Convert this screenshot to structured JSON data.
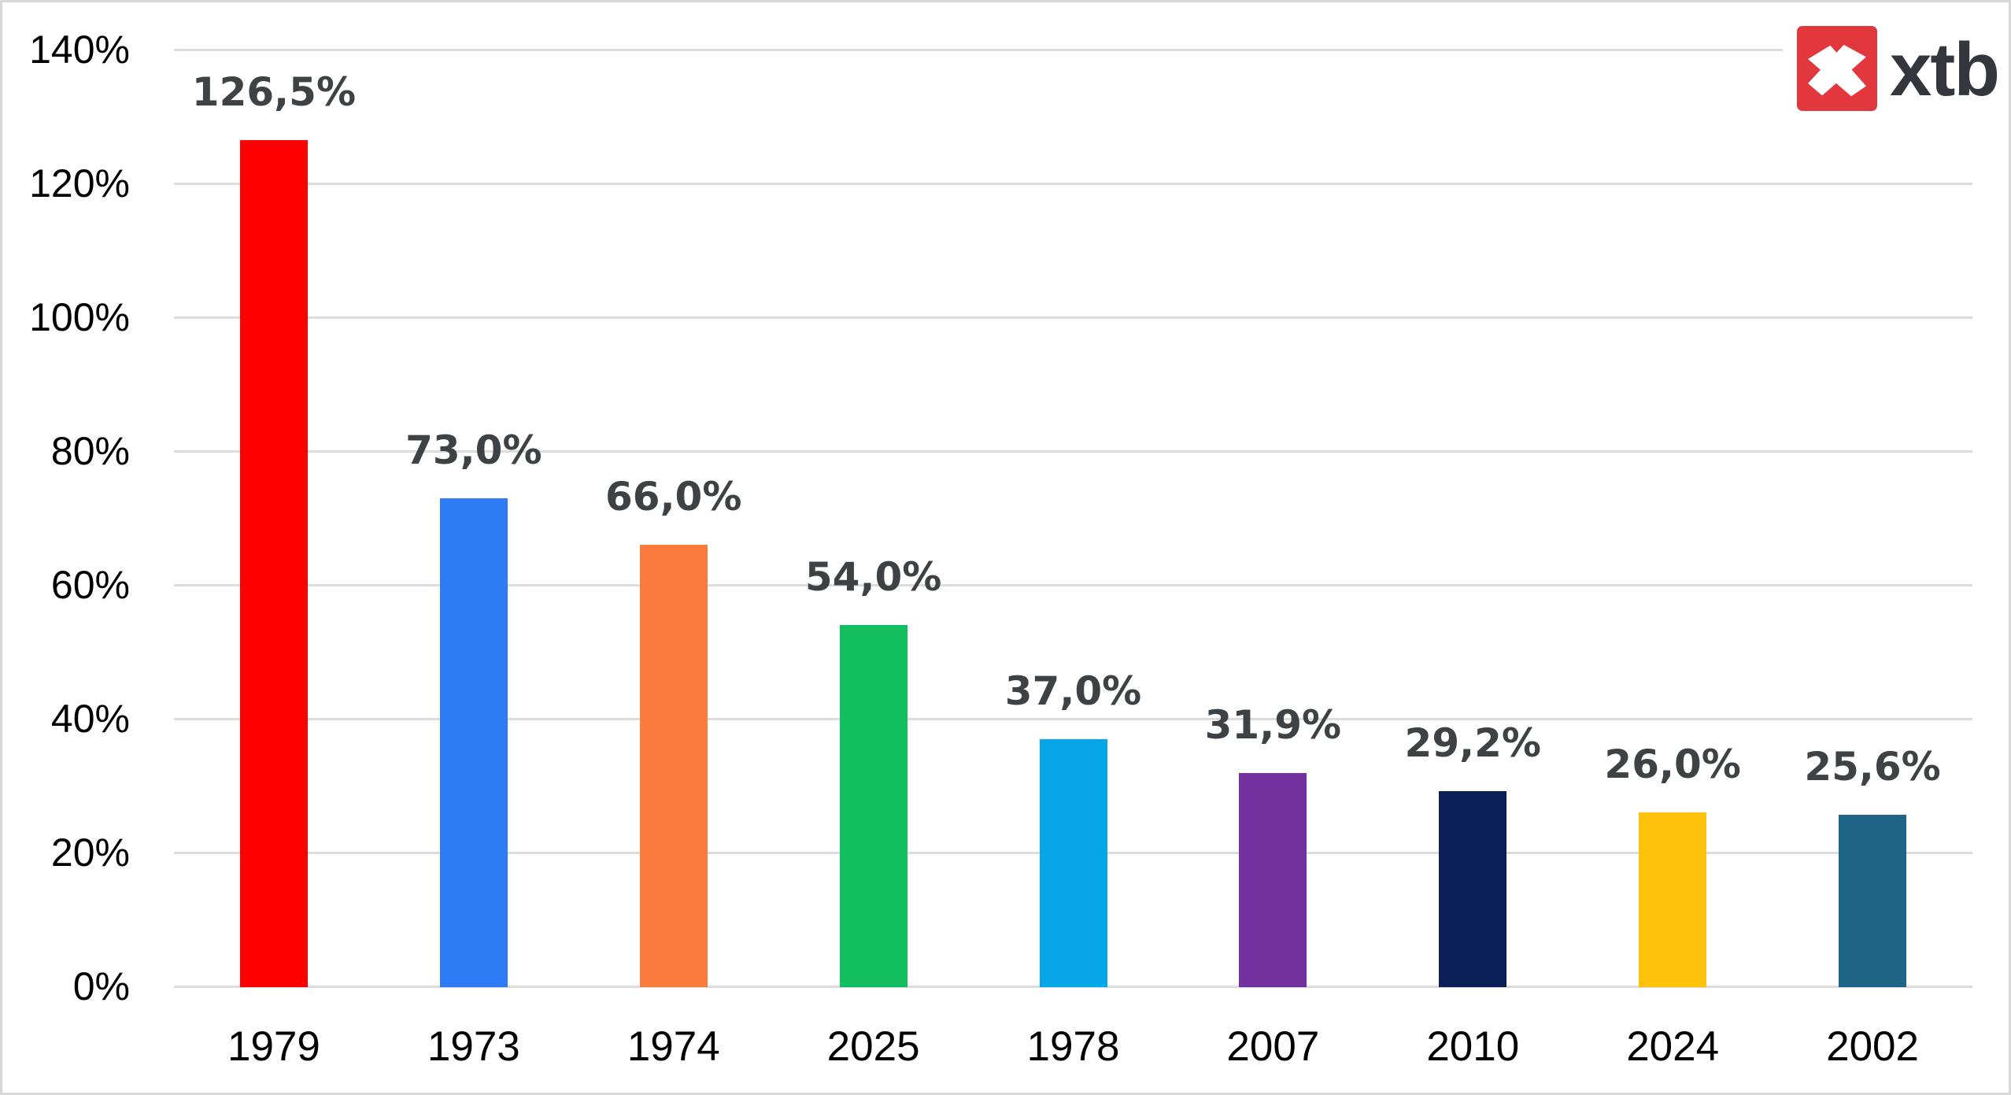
{
  "logo": {
    "text": "xtb",
    "square_color": "#e2383d",
    "text_color": "#33363c",
    "mark_color": "#ffffff"
  },
  "chart_data": {
    "type": "bar",
    "title": "",
    "xlabel": "",
    "ylabel": "",
    "categories": [
      "1979",
      "1973",
      "1974",
      "2025",
      "1978",
      "2007",
      "2010",
      "2024",
      "2002"
    ],
    "values": [
      126.5,
      73.0,
      66.0,
      54.0,
      37.0,
      31.9,
      29.2,
      26.0,
      25.6
    ],
    "value_labels": [
      "126,5%",
      "73,0%",
      "66,0%",
      "54,0%",
      "37,0%",
      "31,9%",
      "29,2%",
      "26,0%",
      "25,6%"
    ],
    "bar_colors": [
      "#fe0000",
      "#2e7cf5",
      "#fb7b3c",
      "#13be5f",
      "#06a7e8",
      "#73319f",
      "#0b2057",
      "#fec20d",
      "#1e6486"
    ],
    "ylim": [
      0,
      140
    ],
    "yticks": [
      0,
      20,
      40,
      60,
      80,
      100,
      120,
      140
    ],
    "ytick_labels": [
      "0%",
      "20%",
      "40%",
      "60%",
      "80%",
      "100%",
      "120%",
      "140%"
    ],
    "grid": "horizontal",
    "gridline_color": "#dcdcdc",
    "legend_position": "none",
    "value_label_color": "#3f4245",
    "axis_text_color": "#000000"
  }
}
